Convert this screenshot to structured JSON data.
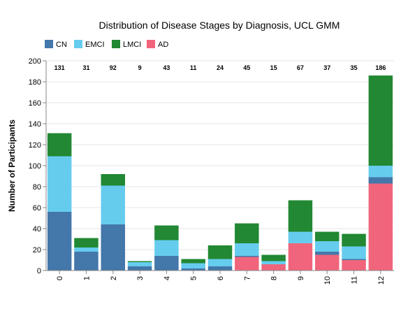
{
  "chart_data": {
    "type": "bar",
    "stacked": true,
    "title": "Distribution of Disease Stages by Diagnosis, UCL GMM",
    "xlabel": "",
    "ylabel": "Number of Participants",
    "ylim": [
      0,
      200
    ],
    "yticks": [
      0,
      20,
      40,
      60,
      80,
      100,
      120,
      140,
      160,
      180,
      200
    ],
    "grid": true,
    "legend_position": "top-left",
    "categories": [
      "0",
      "1",
      "2",
      "3",
      "4",
      "5",
      "6",
      "7",
      "8",
      "9",
      "10",
      "11",
      "12"
    ],
    "totals": [
      "131",
      "31",
      "92",
      "9",
      "43",
      "11",
      "24",
      "45",
      "15",
      "67",
      "37",
      "35",
      "186"
    ],
    "series": [
      {
        "name": "AD",
        "color": "#f0657b",
        "values": [
          0,
          0,
          0,
          0,
          0,
          0,
          0,
          13,
          6,
          26,
          15,
          10,
          83
        ]
      },
      {
        "name": "CN",
        "color": "#4477aa",
        "values": [
          56,
          18,
          44,
          4,
          14,
          2,
          4,
          1,
          0,
          0,
          3,
          1,
          6
        ]
      },
      {
        "name": "EMCI",
        "color": "#66ccee",
        "values": [
          53,
          4,
          37,
          4,
          15,
          5,
          7,
          12,
          3,
          11,
          10,
          12,
          11
        ]
      },
      {
        "name": "LMCI",
        "color": "#228833",
        "values": [
          22,
          9,
          11,
          1,
          14,
          4,
          13,
          19,
          6,
          30,
          9,
          12,
          86
        ]
      }
    ],
    "legend_order": [
      "CN",
      "EMCI",
      "LMCI",
      "AD"
    ]
  }
}
